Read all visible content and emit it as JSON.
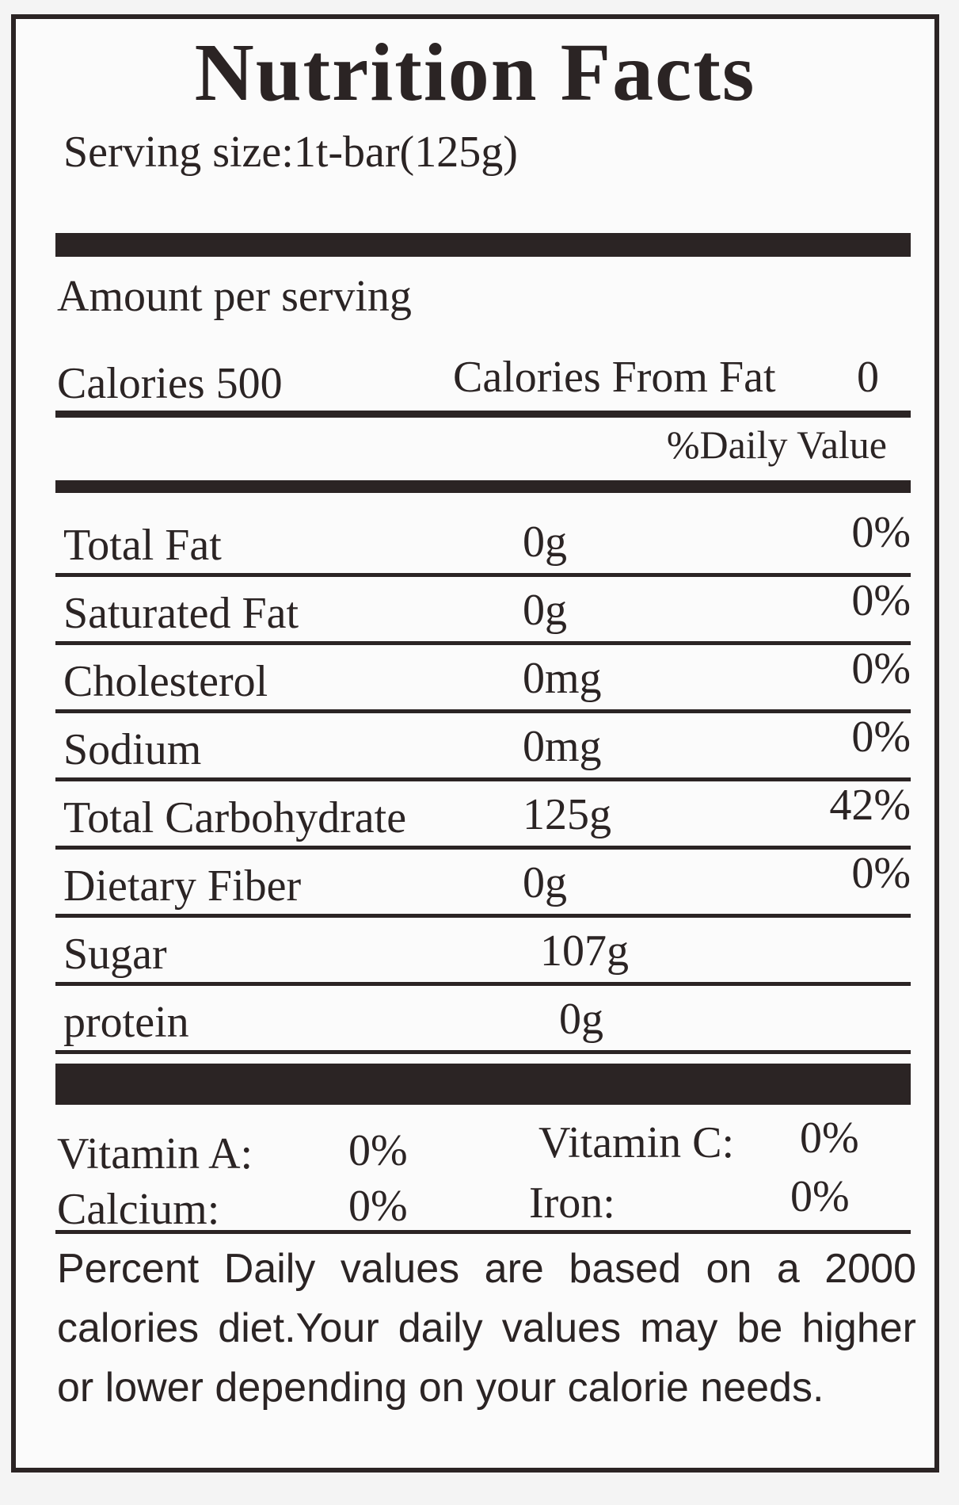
{
  "title": "Nutrition Facts",
  "serving_size": "Serving size:1t-bar(125g)",
  "amount_per_serving": "Amount per serving",
  "calories_label": "Calories 500",
  "calories_from_fat_label": "Calories From Fat",
  "calories_from_fat_value": "0",
  "daily_value_header": "%Daily Value",
  "nutrients": [
    {
      "name": "Total Fat",
      "amount": "0g",
      "dv": "0%"
    },
    {
      "name": "Saturated Fat",
      "amount": "0g",
      "dv": "0%"
    },
    {
      "name": "Cholesterol",
      "amount": "0mg",
      "dv": "0%"
    },
    {
      "name": "Sodium",
      "amount": "0mg",
      "dv": "0%"
    },
    {
      "name": "Total Carbohydrate",
      "amount": "125g",
      "dv": "42%"
    },
    {
      "name": "Dietary Fiber",
      "amount": "0g",
      "dv": "0%"
    },
    {
      "name": "Sugar",
      "amount": "107g",
      "dv": ""
    },
    {
      "name": "protein",
      "amount": "0g",
      "dv": ""
    }
  ],
  "vitamins": {
    "vitamin_a_label": "Vitamin A:",
    "vitamin_a_value": "0%",
    "vitamin_c_label": "Vitamin C:",
    "vitamin_c_value": "0%",
    "calcium_label": "Calcium:",
    "calcium_value": "0%",
    "iron_label": "Iron:",
    "iron_value": "0%"
  },
  "footnote": "Percent Daily values are based on a 2000 calories diet.Your daily values may be higher or lower depending on your calorie needs."
}
